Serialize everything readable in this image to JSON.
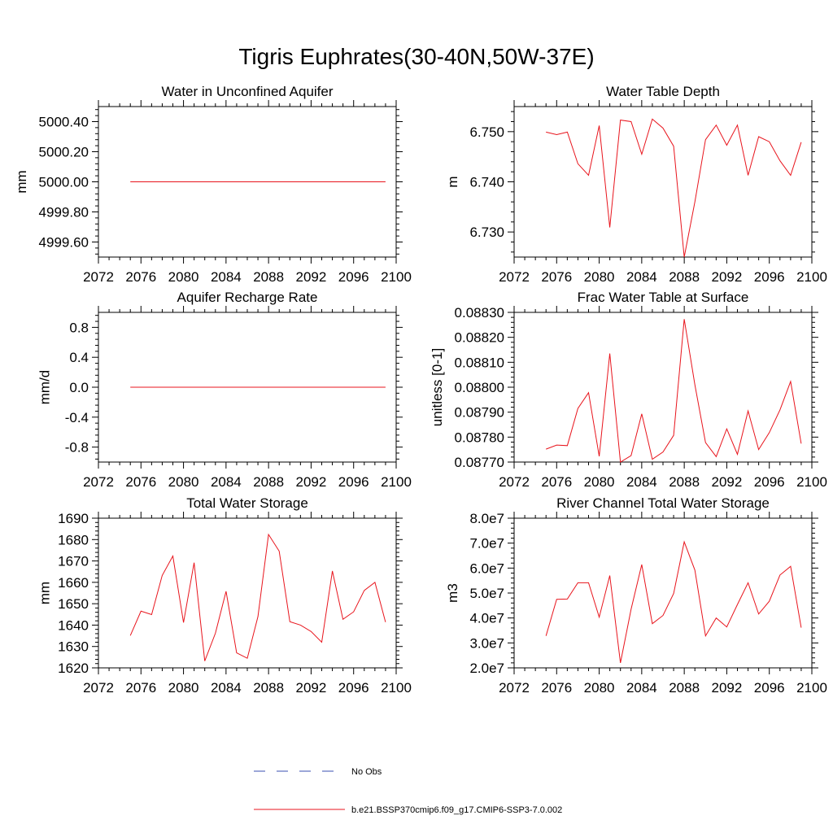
{
  "title": "Tigris Euphrates(30-40N,50W-37E)",
  "colors": {
    "model": "#e8141c",
    "obs": "#3a4fb0"
  },
  "legend": {
    "entries": [
      {
        "label": "No Obs",
        "style": "dashed",
        "color": "#3a4fb0"
      },
      {
        "label": "b.e21.BSSP370cmip6.f09_g17.CMIP6-SSP3-7.0.002",
        "style": "solid",
        "color": "#e8141c"
      }
    ]
  },
  "chart_data": [
    {
      "type": "line",
      "title": "Water in Unconfined Aquifer",
      "xlabel": "",
      "ylabel": "mm",
      "xlim": [
        2072,
        2100
      ],
      "ylim": [
        4999.5,
        5000.5
      ],
      "xticks": [
        "2072",
        "2076",
        "2080",
        "2084",
        "2088",
        "2092",
        "2096",
        "2100"
      ],
      "yticks": [
        "4999.60",
        "4999.80",
        "5000.00",
        "5000.20",
        "5000.40"
      ],
      "series": [
        {
          "x": [
            2075,
            2076,
            2077,
            2078,
            2079,
            2080,
            2081,
            2082,
            2083,
            2084,
            2085,
            2086,
            2087,
            2088,
            2089,
            2090,
            2091,
            2092,
            2093,
            2094,
            2095,
            2096,
            2097,
            2098,
            2099
          ],
          "values": [
            5000,
            5000,
            5000,
            5000,
            5000,
            5000,
            5000,
            5000,
            5000,
            5000,
            5000,
            5000,
            5000,
            5000,
            5000,
            5000,
            5000,
            5000,
            5000,
            5000,
            5000,
            5000,
            5000,
            5000,
            5000
          ]
        }
      ]
    },
    {
      "type": "line",
      "title": "Water Table Depth",
      "xlabel": "",
      "ylabel": "m",
      "xlim": [
        2072,
        2100
      ],
      "ylim": [
        6.725,
        6.755
      ],
      "xticks": [
        "2072",
        "2076",
        "2080",
        "2084",
        "2088",
        "2092",
        "2096",
        "2100"
      ],
      "yticks": [
        "6.730",
        "6.740",
        "6.750"
      ],
      "series": [
        {
          "x": [
            2075,
            2076,
            2077,
            2078,
            2079,
            2080,
            2081,
            2082,
            2083,
            2084,
            2085,
            2086,
            2087,
            2088,
            2089,
            2090,
            2091,
            2092,
            2093,
            2094,
            2095,
            2096,
            2097,
            2098,
            2099
          ],
          "values": [
            6.7499,
            6.7494,
            6.7499,
            6.7436,
            6.7413,
            6.7512,
            6.7309,
            6.7523,
            6.752,
            6.7455,
            6.7525,
            6.7507,
            6.7471,
            6.725,
            6.736,
            6.7484,
            6.7513,
            6.7473,
            6.7513,
            6.7413,
            6.749,
            6.748,
            6.7442,
            6.7413,
            6.7479
          ]
        }
      ]
    },
    {
      "type": "line",
      "title": "Aquifer Recharge Rate",
      "xlabel": "",
      "ylabel": "mm/d",
      "xlim": [
        2072,
        2100
      ],
      "ylim": [
        -1.0,
        1.0
      ],
      "xticks": [
        "2072",
        "2076",
        "2080",
        "2084",
        "2088",
        "2092",
        "2096",
        "2100"
      ],
      "yticks": [
        "-0.8",
        "-0.4",
        "0.0",
        "0.4",
        "0.8"
      ],
      "series": [
        {
          "x": [
            2075,
            2076,
            2077,
            2078,
            2079,
            2080,
            2081,
            2082,
            2083,
            2084,
            2085,
            2086,
            2087,
            2088,
            2089,
            2090,
            2091,
            2092,
            2093,
            2094,
            2095,
            2096,
            2097,
            2098,
            2099
          ],
          "values": [
            0,
            0,
            0,
            0,
            0,
            0,
            0,
            0,
            0,
            0,
            0,
            0,
            0,
            0,
            0,
            0,
            0,
            0,
            0,
            0,
            0,
            0,
            0,
            0,
            0
          ]
        }
      ]
    },
    {
      "type": "line",
      "title": "Frac Water Table at Surface",
      "xlabel": "",
      "ylabel": "unitless [0-1]",
      "xlim": [
        2072,
        2100
      ],
      "ylim": [
        0.0877,
        0.0883
      ],
      "xticks": [
        "2072",
        "2076",
        "2080",
        "2084",
        "2088",
        "2092",
        "2096",
        "2100"
      ],
      "yticks": [
        "0.08770",
        "0.08780",
        "0.08790",
        "0.08800",
        "0.08810",
        "0.08820",
        "0.08830"
      ],
      "series": [
        {
          "x": [
            2075,
            2076,
            2077,
            2078,
            2079,
            2080,
            2081,
            2082,
            2083,
            2084,
            2085,
            2086,
            2087,
            2088,
            2089,
            2090,
            2091,
            2092,
            2093,
            2094,
            2095,
            2096,
            2097,
            2098,
            2099
          ],
          "values": [
            0.087752,
            0.087768,
            0.087766,
            0.087915,
            0.087978,
            0.087723,
            0.088135,
            0.0877,
            0.087726,
            0.087893,
            0.087711,
            0.08774,
            0.087807,
            0.088273,
            0.08801,
            0.087778,
            0.087722,
            0.087833,
            0.087731,
            0.087905,
            0.08775,
            0.087818,
            0.087909,
            0.088023,
            0.087774
          ]
        }
      ]
    },
    {
      "type": "line",
      "title": "Total Water Storage",
      "xlabel": "",
      "ylabel": "mm",
      "xlim": [
        2072,
        2100
      ],
      "ylim": [
        1620,
        1690
      ],
      "xticks": [
        "2072",
        "2076",
        "2080",
        "2084",
        "2088",
        "2092",
        "2096",
        "2100"
      ],
      "yticks": [
        "1620",
        "1630",
        "1640",
        "1650",
        "1660",
        "1670",
        "1680",
        "1690"
      ],
      "series": [
        {
          "x": [
            2075,
            2076,
            2077,
            2078,
            2079,
            2080,
            2081,
            2082,
            2083,
            2084,
            2085,
            2086,
            2087,
            2088,
            2089,
            2090,
            2091,
            2092,
            2093,
            2094,
            2095,
            2096,
            2097,
            2098,
            2099
          ],
          "values": [
            1635.1,
            1646.5,
            1644.9,
            1663.2,
            1672.3,
            1641.2,
            1669.2,
            1623.2,
            1636.2,
            1655.8,
            1627.0,
            1624.5,
            1644.0,
            1682.4,
            1674.6,
            1641.6,
            1640.0,
            1637.0,
            1632.0,
            1665.3,
            1642.7,
            1646.2,
            1656.2,
            1660.0,
            1641.4
          ]
        }
      ]
    },
    {
      "type": "line",
      "title": "River Channel Total Water Storage",
      "xlabel": "",
      "ylabel": "m3",
      "xlim": [
        2072,
        2100
      ],
      "ylim": [
        20000000.0,
        80000000.0
      ],
      "xticks": [
        "2072",
        "2076",
        "2080",
        "2084",
        "2088",
        "2092",
        "2096",
        "2100"
      ],
      "yticks": [
        "2.0e7",
        "3.0e7",
        "4.0e7",
        "5.0e7",
        "6.0e7",
        "7.0e7",
        "8.0e7"
      ],
      "series": [
        {
          "x": [
            2075,
            2076,
            2077,
            2078,
            2079,
            2080,
            2081,
            2082,
            2083,
            2084,
            2085,
            2086,
            2087,
            2088,
            2089,
            2090,
            2091,
            2092,
            2093,
            2094,
            2095,
            2096,
            2097,
            2098,
            2099
          ],
          "values": [
            32800000.0,
            47500000.0,
            47600000.0,
            54100000.0,
            54100000.0,
            40300000.0,
            57000000.0,
            22000000.0,
            43500000.0,
            61400000.0,
            37700000.0,
            41000000.0,
            49800000.0,
            70500000.0,
            59200000.0,
            32800000.0,
            40000000.0,
            36400000.0,
            45400000.0,
            54100000.0,
            41600000.0,
            46700000.0,
            57200000.0,
            60700000.0,
            36100000.0
          ]
        }
      ]
    }
  ]
}
